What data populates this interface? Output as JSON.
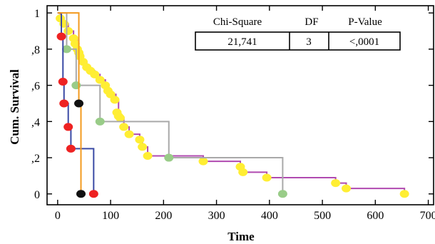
{
  "chart_data": {
    "type": "line",
    "xlabel": "Time",
    "ylabel": "Cum. Survival",
    "xlim": [
      -20,
      710
    ],
    "ylim": [
      -0.06,
      1.04
    ],
    "x_ticks": [
      0,
      100,
      200,
      300,
      400,
      500,
      600,
      700
    ],
    "x_tick_labels": [
      "0",
      "100",
      "200",
      "300",
      "400",
      "500",
      "600",
      "700"
    ],
    "y_ticks": [
      0,
      0.2,
      0.4,
      0.6,
      0.8,
      1.0
    ],
    "y_tick_labels": [
      "0",
      ",2",
      ",4",
      ",6",
      ",8",
      "1"
    ],
    "grid": false,
    "series": [
      {
        "color": "#b04ab0",
        "marker_color": "#ffee33",
        "steps": [
          [
            0,
            1.0
          ],
          [
            5,
            0.97
          ],
          [
            12,
            0.94
          ],
          [
            20,
            0.9
          ],
          [
            30,
            0.85
          ],
          [
            37,
            0.8
          ],
          [
            42,
            0.77
          ],
          [
            48,
            0.73
          ],
          [
            55,
            0.7
          ],
          [
            62,
            0.68
          ],
          [
            70,
            0.66
          ],
          [
            80,
            0.63
          ],
          [
            90,
            0.6
          ],
          [
            95,
            0.57
          ],
          [
            100,
            0.55
          ],
          [
            110,
            0.52
          ],
          [
            115,
            0.45
          ],
          [
            118,
            0.42
          ],
          [
            125,
            0.37
          ],
          [
            135,
            0.33
          ],
          [
            155,
            0.3
          ],
          [
            160,
            0.26
          ],
          [
            170,
            0.21
          ],
          [
            205,
            0.21
          ],
          [
            275,
            0.18
          ],
          [
            345,
            0.15
          ],
          [
            350,
            0.12
          ],
          [
            395,
            0.09
          ],
          [
            525,
            0.06
          ],
          [
            545,
            0.03
          ],
          [
            655,
            0.0
          ]
        ],
        "markers": [
          [
            5,
            0.97
          ],
          [
            12,
            0.94
          ],
          [
            20,
            0.9
          ],
          [
            30,
            0.86
          ],
          [
            33,
            0.83
          ],
          [
            37,
            0.8
          ],
          [
            40,
            0.78
          ],
          [
            42,
            0.76
          ],
          [
            48,
            0.73
          ],
          [
            55,
            0.7
          ],
          [
            62,
            0.68
          ],
          [
            70,
            0.66
          ],
          [
            80,
            0.63
          ],
          [
            90,
            0.6
          ],
          [
            95,
            0.57
          ],
          [
            100,
            0.55
          ],
          [
            108,
            0.52
          ],
          [
            112,
            0.45
          ],
          [
            115,
            0.43
          ],
          [
            118,
            0.42
          ],
          [
            125,
            0.37
          ],
          [
            135,
            0.33
          ],
          [
            155,
            0.3
          ],
          [
            160,
            0.26
          ],
          [
            170,
            0.21
          ],
          [
            275,
            0.18
          ],
          [
            345,
            0.15
          ],
          [
            350,
            0.12
          ],
          [
            395,
            0.09
          ],
          [
            525,
            0.06
          ],
          [
            545,
            0.03
          ],
          [
            655,
            0.0
          ]
        ]
      },
      {
        "color": "#a9a9a9",
        "marker_color": "#99cc88",
        "steps": [
          [
            0,
            1.0
          ],
          [
            17,
            0.8
          ],
          [
            35,
            0.6
          ],
          [
            80,
            0.4
          ],
          [
            210,
            0.2
          ],
          [
            425,
            0.0
          ]
        ],
        "markers": [
          [
            17,
            0.8
          ],
          [
            35,
            0.6
          ],
          [
            80,
            0.4
          ],
          [
            210,
            0.2
          ],
          [
            425,
            0.0
          ]
        ]
      },
      {
        "color": "#3a4aa5",
        "marker_color": "#ee2222",
        "steps": [
          [
            0,
            1.0
          ],
          [
            7,
            0.87
          ],
          [
            10,
            0.62
          ],
          [
            12,
            0.5
          ],
          [
            20,
            0.37
          ],
          [
            25,
            0.25
          ],
          [
            68,
            0.0
          ]
        ],
        "markers": [
          [
            7,
            0.87
          ],
          [
            10,
            0.62
          ],
          [
            12,
            0.5
          ],
          [
            20,
            0.37
          ],
          [
            25,
            0.25
          ],
          [
            68,
            0.0
          ]
        ]
      },
      {
        "color": "#f39a1e",
        "marker_color": "#111111",
        "steps": [
          [
            0,
            1.0
          ],
          [
            40,
            0.5
          ],
          [
            44,
            0.0
          ]
        ],
        "markers": [
          [
            40,
            0.5
          ],
          [
            44,
            0.0
          ]
        ]
      }
    ]
  },
  "stats_table": {
    "headers": [
      "Chi-Square",
      "DF",
      "P-Value"
    ],
    "values": [
      "21,741",
      "3",
      "<,0001"
    ]
  }
}
